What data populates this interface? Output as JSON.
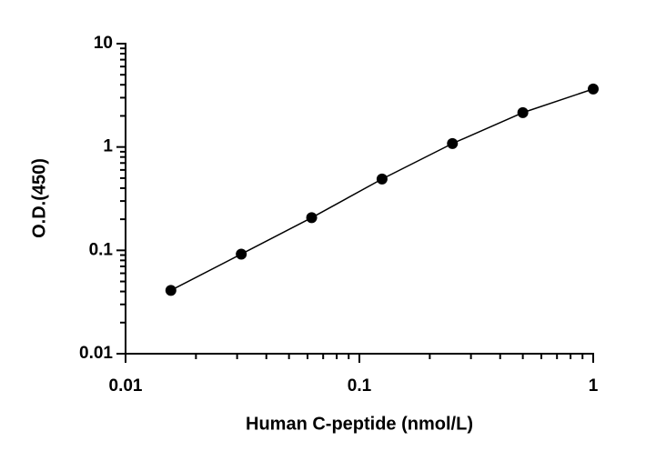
{
  "chart_data": {
    "type": "scatter",
    "log_x": true,
    "log_y": true,
    "x_label": "Human C-peptide (nmol/L)",
    "y_label": "O.D.(450)",
    "xlim": [
      0.01,
      1
    ],
    "xticks": [
      0.01,
      0.1,
      1
    ],
    "ylim": [
      0.01,
      10
    ],
    "yticks": [
      0.01,
      0.1,
      1,
      10
    ],
    "connect": true,
    "series": [
      {
        "color": "#000000",
        "x": [
          0.015625,
          0.03125,
          0.0625,
          0.125,
          0.25,
          0.5,
          1
        ],
        "values": [
          0.041,
          0.092,
          0.207,
          0.49,
          1.08,
          2.15,
          3.64
        ]
      }
    ]
  }
}
